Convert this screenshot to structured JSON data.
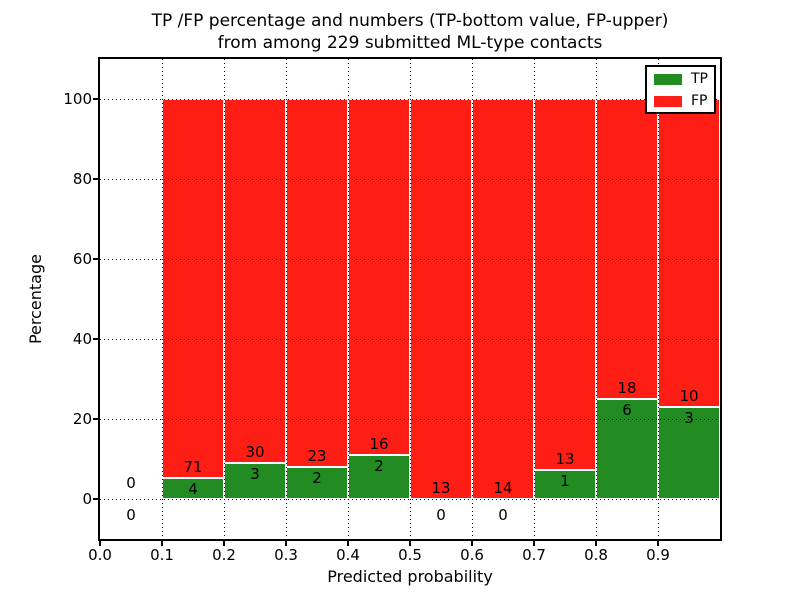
{
  "chart_data": {
    "type": "bar",
    "stacked": true,
    "title_line1": "TP /FP percentage and numbers (TP-bottom value, FP-upper)",
    "title_line2": "from among 229 submitted ML-type contacts",
    "xlabel": "Predicted probability",
    "ylabel": "Percentage",
    "total_contacts": 229,
    "xlim": [
      0.0,
      1.0
    ],
    "ylim": [
      -10,
      110
    ],
    "x_tick_values": [
      0.0,
      0.1,
      0.2,
      0.3,
      0.4,
      0.5,
      0.6,
      0.7,
      0.8,
      0.9
    ],
    "x_tick_labels": [
      "0.0",
      "0.1",
      "0.2",
      "0.3",
      "0.4",
      "0.5",
      "0.6",
      "0.7",
      "0.8",
      "0.9"
    ],
    "y_tick_values": [
      0,
      20,
      40,
      60,
      80,
      100
    ],
    "y_tick_labels": [
      "0",
      "20",
      "40",
      "60",
      "80",
      "100"
    ],
    "grid_style": "dotted",
    "grid_color": "#000000",
    "legend": {
      "position": "upper right",
      "entries": [
        {
          "label": "TP",
          "color": "#228b22"
        },
        {
          "label": "FP",
          "color": "#ff1e15"
        }
      ]
    },
    "bins": [
      {
        "range": [
          0.0,
          0.1
        ],
        "tp": 0,
        "fp": 0,
        "tp_pct": 0,
        "fp_pct": 0
      },
      {
        "range": [
          0.1,
          0.2
        ],
        "tp": 4,
        "fp": 71,
        "tp_pct": 5.33,
        "fp_pct": 94.67
      },
      {
        "range": [
          0.2,
          0.3
        ],
        "tp": 3,
        "fp": 30,
        "tp_pct": 9.09,
        "fp_pct": 90.91
      },
      {
        "range": [
          0.3,
          0.4
        ],
        "tp": 2,
        "fp": 23,
        "tp_pct": 8.0,
        "fp_pct": 92.0
      },
      {
        "range": [
          0.4,
          0.5
        ],
        "tp": 2,
        "fp": 16,
        "tp_pct": 11.11,
        "fp_pct": 88.89
      },
      {
        "range": [
          0.5,
          0.6
        ],
        "tp": 0,
        "fp": 13,
        "tp_pct": 0,
        "fp_pct": 100
      },
      {
        "range": [
          0.6,
          0.7
        ],
        "tp": 0,
        "fp": 14,
        "tp_pct": 0,
        "fp_pct": 100
      },
      {
        "range": [
          0.7,
          0.8
        ],
        "tp": 1,
        "fp": 13,
        "tp_pct": 7.14,
        "fp_pct": 92.86
      },
      {
        "range": [
          0.8,
          0.9
        ],
        "tp": 6,
        "fp": 18,
        "tp_pct": 25.0,
        "fp_pct": 75.0
      },
      {
        "range": [
          0.9,
          1.0
        ],
        "tp": 3,
        "fp": 10,
        "tp_pct": 23.08,
        "fp_pct": 76.92
      }
    ]
  }
}
